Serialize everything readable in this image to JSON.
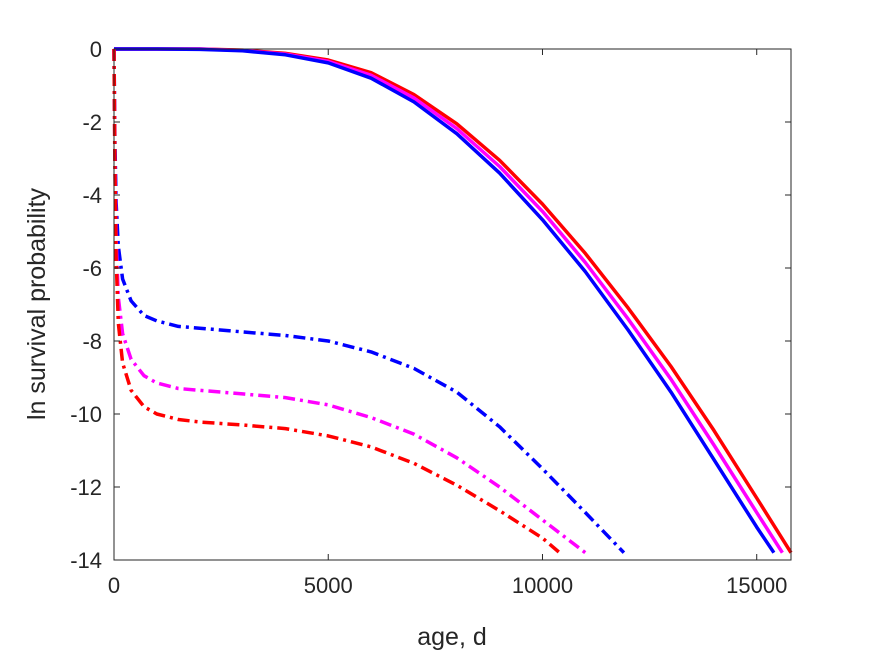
{
  "chart_data": {
    "type": "line",
    "title": "",
    "xlabel": "age, d",
    "ylabel": "ln survival probability",
    "xlim": [
      0,
      15800
    ],
    "ylim": [
      -14,
      0
    ],
    "xticks": [
      0,
      5000,
      10000,
      15000
    ],
    "xtick_labels": [
      "0",
      "5000",
      "10000",
      "15000"
    ],
    "yticks": [
      0,
      -2,
      -4,
      -6,
      -8,
      -10,
      -12,
      -14
    ],
    "ytick_labels": [
      "0",
      "-2",
      "-4",
      "-6",
      "-8",
      "-10",
      "-12",
      "-14"
    ],
    "grid": false,
    "legend": "none",
    "series": [
      {
        "color": "#ff0000",
        "style": "solid",
        "x": [
          0,
          1000,
          2000,
          3000,
          4000,
          5000,
          6000,
          7000,
          8000,
          9000,
          10000,
          11000,
          12000,
          13000,
          14000,
          15000,
          15800
        ],
        "y": [
          0,
          0,
          0,
          -0.03,
          -0.12,
          -0.3,
          -0.65,
          -1.25,
          -2.05,
          -3.05,
          -4.25,
          -5.6,
          -7.1,
          -8.7,
          -10.45,
          -12.3,
          -13.8
        ]
      },
      {
        "color": "#ff00ff",
        "style": "solid",
        "x": [
          0,
          1000,
          2000,
          3000,
          4000,
          5000,
          6000,
          7000,
          8000,
          9000,
          10000,
          11000,
          12000,
          13000,
          14000,
          15000,
          15600
        ],
        "y": [
          0,
          0,
          0,
          -0.04,
          -0.14,
          -0.34,
          -0.72,
          -1.34,
          -2.18,
          -3.22,
          -4.45,
          -5.85,
          -7.4,
          -9.05,
          -10.85,
          -12.7,
          -13.8
        ]
      },
      {
        "color": "#0000ff",
        "style": "solid",
        "x": [
          0,
          1000,
          2000,
          3000,
          4000,
          5000,
          6000,
          7000,
          8000,
          9000,
          10000,
          11000,
          12000,
          13000,
          14000,
          15000,
          15400
        ],
        "y": [
          0,
          0,
          -0.01,
          -0.05,
          -0.16,
          -0.38,
          -0.8,
          -1.45,
          -2.32,
          -3.4,
          -4.68,
          -6.1,
          -7.7,
          -9.4,
          -11.25,
          -13.1,
          -13.8
        ]
      },
      {
        "color": "#0000ff",
        "style": "dashdot",
        "x": [
          0,
          20,
          50,
          100,
          200,
          400,
          700,
          1000,
          1500,
          2000,
          3000,
          4000,
          5000,
          6000,
          7000,
          8000,
          9000,
          10000,
          11000,
          11900
        ],
        "y": [
          0,
          -2.5,
          -4.2,
          -5.4,
          -6.3,
          -6.9,
          -7.3,
          -7.45,
          -7.6,
          -7.65,
          -7.75,
          -7.85,
          -8.0,
          -8.3,
          -8.75,
          -9.4,
          -10.35,
          -11.5,
          -12.7,
          -13.8
        ]
      },
      {
        "color": "#ff00ff",
        "style": "dashdot",
        "x": [
          0,
          20,
          50,
          100,
          200,
          400,
          700,
          1000,
          1500,
          2000,
          3000,
          4000,
          5000,
          6000,
          7000,
          8000,
          9000,
          10000,
          11000
        ],
        "y": [
          0,
          -3.0,
          -5.2,
          -6.8,
          -7.8,
          -8.5,
          -8.95,
          -9.15,
          -9.3,
          -9.35,
          -9.45,
          -9.55,
          -9.75,
          -10.1,
          -10.55,
          -11.2,
          -12.0,
          -12.9,
          -13.8
        ]
      },
      {
        "color": "#ff0000",
        "style": "dashdot",
        "x": [
          0,
          20,
          50,
          100,
          200,
          400,
          700,
          1000,
          1500,
          2000,
          3000,
          4000,
          5000,
          6000,
          7000,
          8000,
          9000,
          10000,
          10400
        ],
        "y": [
          0,
          -3.3,
          -5.7,
          -7.5,
          -8.6,
          -9.35,
          -9.8,
          -10.0,
          -10.15,
          -10.22,
          -10.3,
          -10.4,
          -10.6,
          -10.9,
          -11.35,
          -11.95,
          -12.65,
          -13.4,
          -13.8
        ]
      }
    ]
  }
}
